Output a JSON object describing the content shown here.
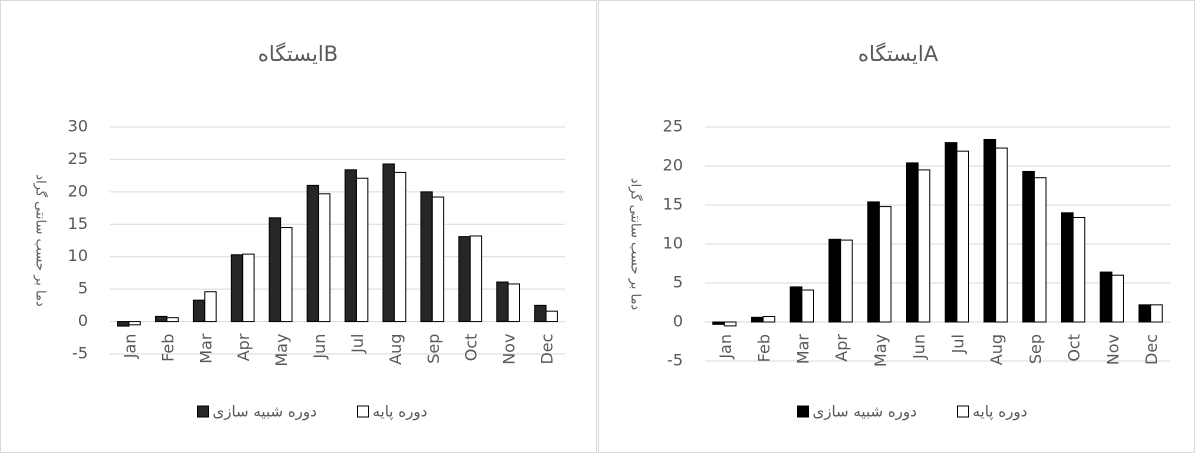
{
  "chart_data": [
    {
      "type": "bar",
      "title": "ایستگاهB",
      "y_label": "دما بر حسب سانتی گراد",
      "categories": [
        "Jan",
        "Feb",
        "Mar",
        "Apr",
        "May",
        "Jun",
        "Jul",
        "Aug",
        "Sep",
        "Oct",
        "Nov",
        "Dec"
      ],
      "series": [
        {
          "name": "دوره شبیه سازی",
          "color": "#262626",
          "values": [
            -0.7,
            0.8,
            3.3,
            10.3,
            16,
            21,
            23.4,
            24.3,
            20,
            13.1,
            6.1,
            2.5
          ]
        },
        {
          "name": "دوره پایه",
          "color": "#ffffff",
          "values": [
            -0.5,
            0.6,
            4.6,
            10.4,
            14.5,
            19.7,
            22.1,
            23,
            19.2,
            13.2,
            5.8,
            1.6
          ]
        }
      ],
      "ylim": [
        -5,
        30
      ],
      "yticks": [
        -5,
        0,
        5,
        10,
        15,
        20,
        25,
        30
      ],
      "grid": true,
      "legend": "bottom"
    },
    {
      "type": "bar",
      "title": "ایستگاهA",
      "y_label": "دما بر حسب سانتی گراد",
      "categories": [
        "Jan",
        "Feb",
        "Mar",
        "Apr",
        "May",
        "Jun",
        "Jul",
        "Aug",
        "Sep",
        "Oct",
        "Nov",
        "Dec"
      ],
      "series": [
        {
          "name": "دوره شبیه سازی",
          "color": "#000000",
          "values": [
            -0.3,
            0.6,
            4.5,
            10.6,
            15.4,
            20.4,
            23,
            23.4,
            19.3,
            14,
            6.4,
            2.2
          ]
        },
        {
          "name": "دوره پایه",
          "color": "#ffffff",
          "values": [
            -0.5,
            0.7,
            4.1,
            10.5,
            14.8,
            19.5,
            21.9,
            22.3,
            18.5,
            13.4,
            6,
            2.2
          ]
        }
      ],
      "ylim": [
        -5,
        25
      ],
      "yticks": [
        -5,
        0,
        5,
        10,
        15,
        20,
        25
      ],
      "grid": true,
      "legend": "bottom"
    }
  ]
}
